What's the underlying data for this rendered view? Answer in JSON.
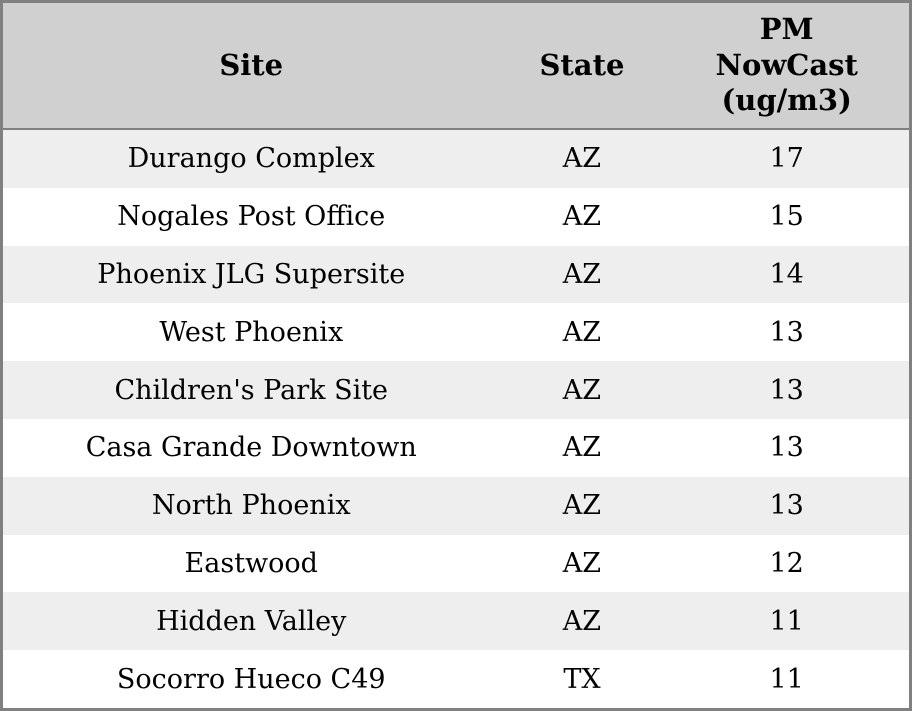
{
  "colors": {
    "outer_border": "#808080",
    "header_divider": "#808080",
    "header_bg": "#d0d0d0",
    "row_stripe_bg": "#eeeeee",
    "row_bg": "#ffffff",
    "text": "#000000"
  },
  "table": {
    "columns": [
      {
        "label": "Site"
      },
      {
        "label": "State"
      },
      {
        "label": "PM NowCast (ug/m3)"
      }
    ],
    "rows": [
      {
        "site": "Durango Complex",
        "state": "AZ",
        "pm": "17"
      },
      {
        "site": "Nogales Post Office",
        "state": "AZ",
        "pm": "15"
      },
      {
        "site": "Phoenix JLG Supersite",
        "state": "AZ",
        "pm": "14"
      },
      {
        "site": "West Phoenix",
        "state": "AZ",
        "pm": "13"
      },
      {
        "site": "Children's Park Site",
        "state": "AZ",
        "pm": "13"
      },
      {
        "site": "Casa Grande Downtown",
        "state": "AZ",
        "pm": "13"
      },
      {
        "site": "North Phoenix",
        "state": "AZ",
        "pm": "13"
      },
      {
        "site": "Eastwood",
        "state": "AZ",
        "pm": "12"
      },
      {
        "site": "Hidden Valley",
        "state": "AZ",
        "pm": "11"
      },
      {
        "site": "Socorro Hueco C49",
        "state": "TX",
        "pm": "11"
      }
    ]
  },
  "chart_data": {
    "type": "table",
    "title": "",
    "columns": [
      "Site",
      "State",
      "PM NowCast (ug/m3)"
    ],
    "rows": [
      [
        "Durango Complex",
        "AZ",
        17
      ],
      [
        "Nogales Post Office",
        "AZ",
        15
      ],
      [
        "Phoenix JLG Supersite",
        "AZ",
        14
      ],
      [
        "West Phoenix",
        "AZ",
        13
      ],
      [
        "Children's Park Site",
        "AZ",
        13
      ],
      [
        "Casa Grande Downtown",
        "AZ",
        13
      ],
      [
        "North Phoenix",
        "AZ",
        13
      ],
      [
        "Eastwood",
        "AZ",
        12
      ],
      [
        "Hidden Valley",
        "AZ",
        11
      ],
      [
        "Socorro Hueco C49",
        "TX",
        11
      ]
    ],
    "layout_hints": {
      "zebra_striping": true,
      "header_bold": true,
      "all_cells_centered": true
    }
  }
}
